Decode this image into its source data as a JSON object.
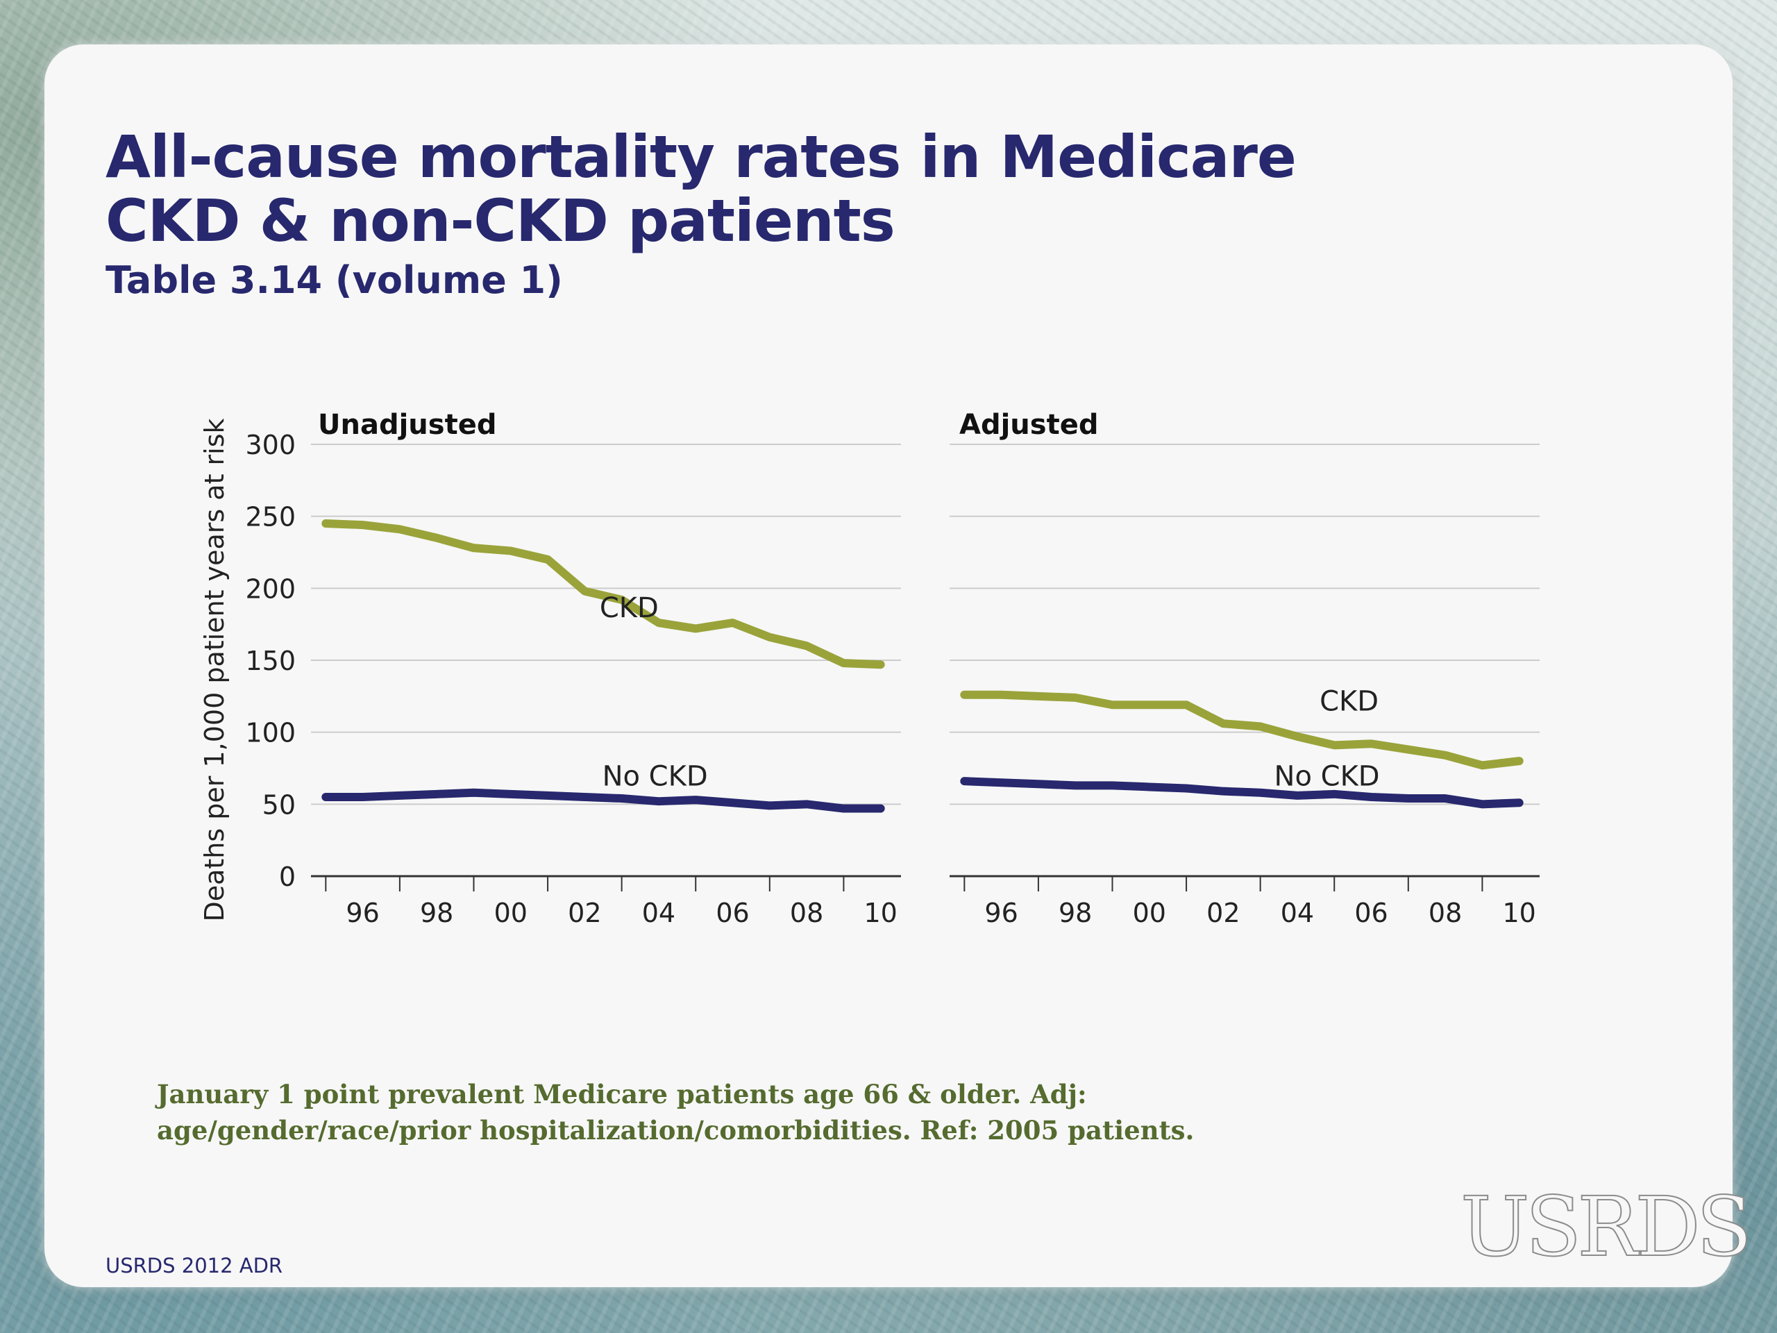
{
  "slide": {
    "title": "All-cause mortality rates in Medicare\nCKD & non-CKD patients",
    "subtitle": "Table 3.14 (volume 1)",
    "footnote": "January 1 point prevalent Medicare patients age 66 & older. Adj: age/gender/race/prior hospitalization/comorbidities. Ref: 2005 patients.",
    "source": "USRDS 2012 ADR",
    "logo": "USRDS"
  },
  "colors": {
    "ckd": "#9aa33a",
    "no_ckd": "#27286e",
    "title": "#27286e",
    "footnote": "#556b2f",
    "grid": "#cccccc"
  },
  "chart_data": [
    {
      "type": "line",
      "title": "Unadjusted",
      "ylabel": "Deaths per 1,000 patient years at risk",
      "ylim": [
        0,
        300
      ],
      "yticks": [
        "0",
        "50",
        "100",
        "150",
        "200",
        "250",
        "300"
      ],
      "xticks": [
        "96",
        "98",
        "00",
        "02",
        "04",
        "06",
        "08",
        "10"
      ],
      "x": [
        1995,
        1996,
        1997,
        1998,
        1999,
        2000,
        2001,
        2002,
        2003,
        2004,
        2005,
        2006,
        2007,
        2008,
        2009,
        2010
      ],
      "series": [
        {
          "name": "CKD",
          "values": [
            245,
            244,
            241,
            235,
            228,
            226,
            220,
            198,
            192,
            176,
            172,
            176,
            166,
            160,
            148,
            147
          ]
        },
        {
          "name": "No CKD",
          "values": [
            55,
            55,
            56,
            57,
            58,
            57,
            56,
            55,
            54,
            52,
            53,
            51,
            49,
            50,
            47,
            47
          ]
        }
      ],
      "grid": true
    },
    {
      "type": "line",
      "title": "Adjusted",
      "ylim": [
        0,
        300
      ],
      "xticks": [
        "96",
        "98",
        "00",
        "02",
        "04",
        "06",
        "08",
        "10"
      ],
      "x": [
        1995,
        1996,
        1997,
        1998,
        1999,
        2000,
        2001,
        2002,
        2003,
        2004,
        2005,
        2006,
        2007,
        2008,
        2009,
        2010
      ],
      "series": [
        {
          "name": "CKD",
          "values": [
            126,
            126,
            125,
            124,
            119,
            119,
            119,
            106,
            104,
            97,
            91,
            92,
            88,
            84,
            77,
            80
          ]
        },
        {
          "name": "No CKD",
          "values": [
            66,
            65,
            64,
            63,
            63,
            62,
            61,
            59,
            58,
            56,
            57,
            55,
            54,
            54,
            50,
            51
          ]
        }
      ],
      "grid": true
    }
  ]
}
